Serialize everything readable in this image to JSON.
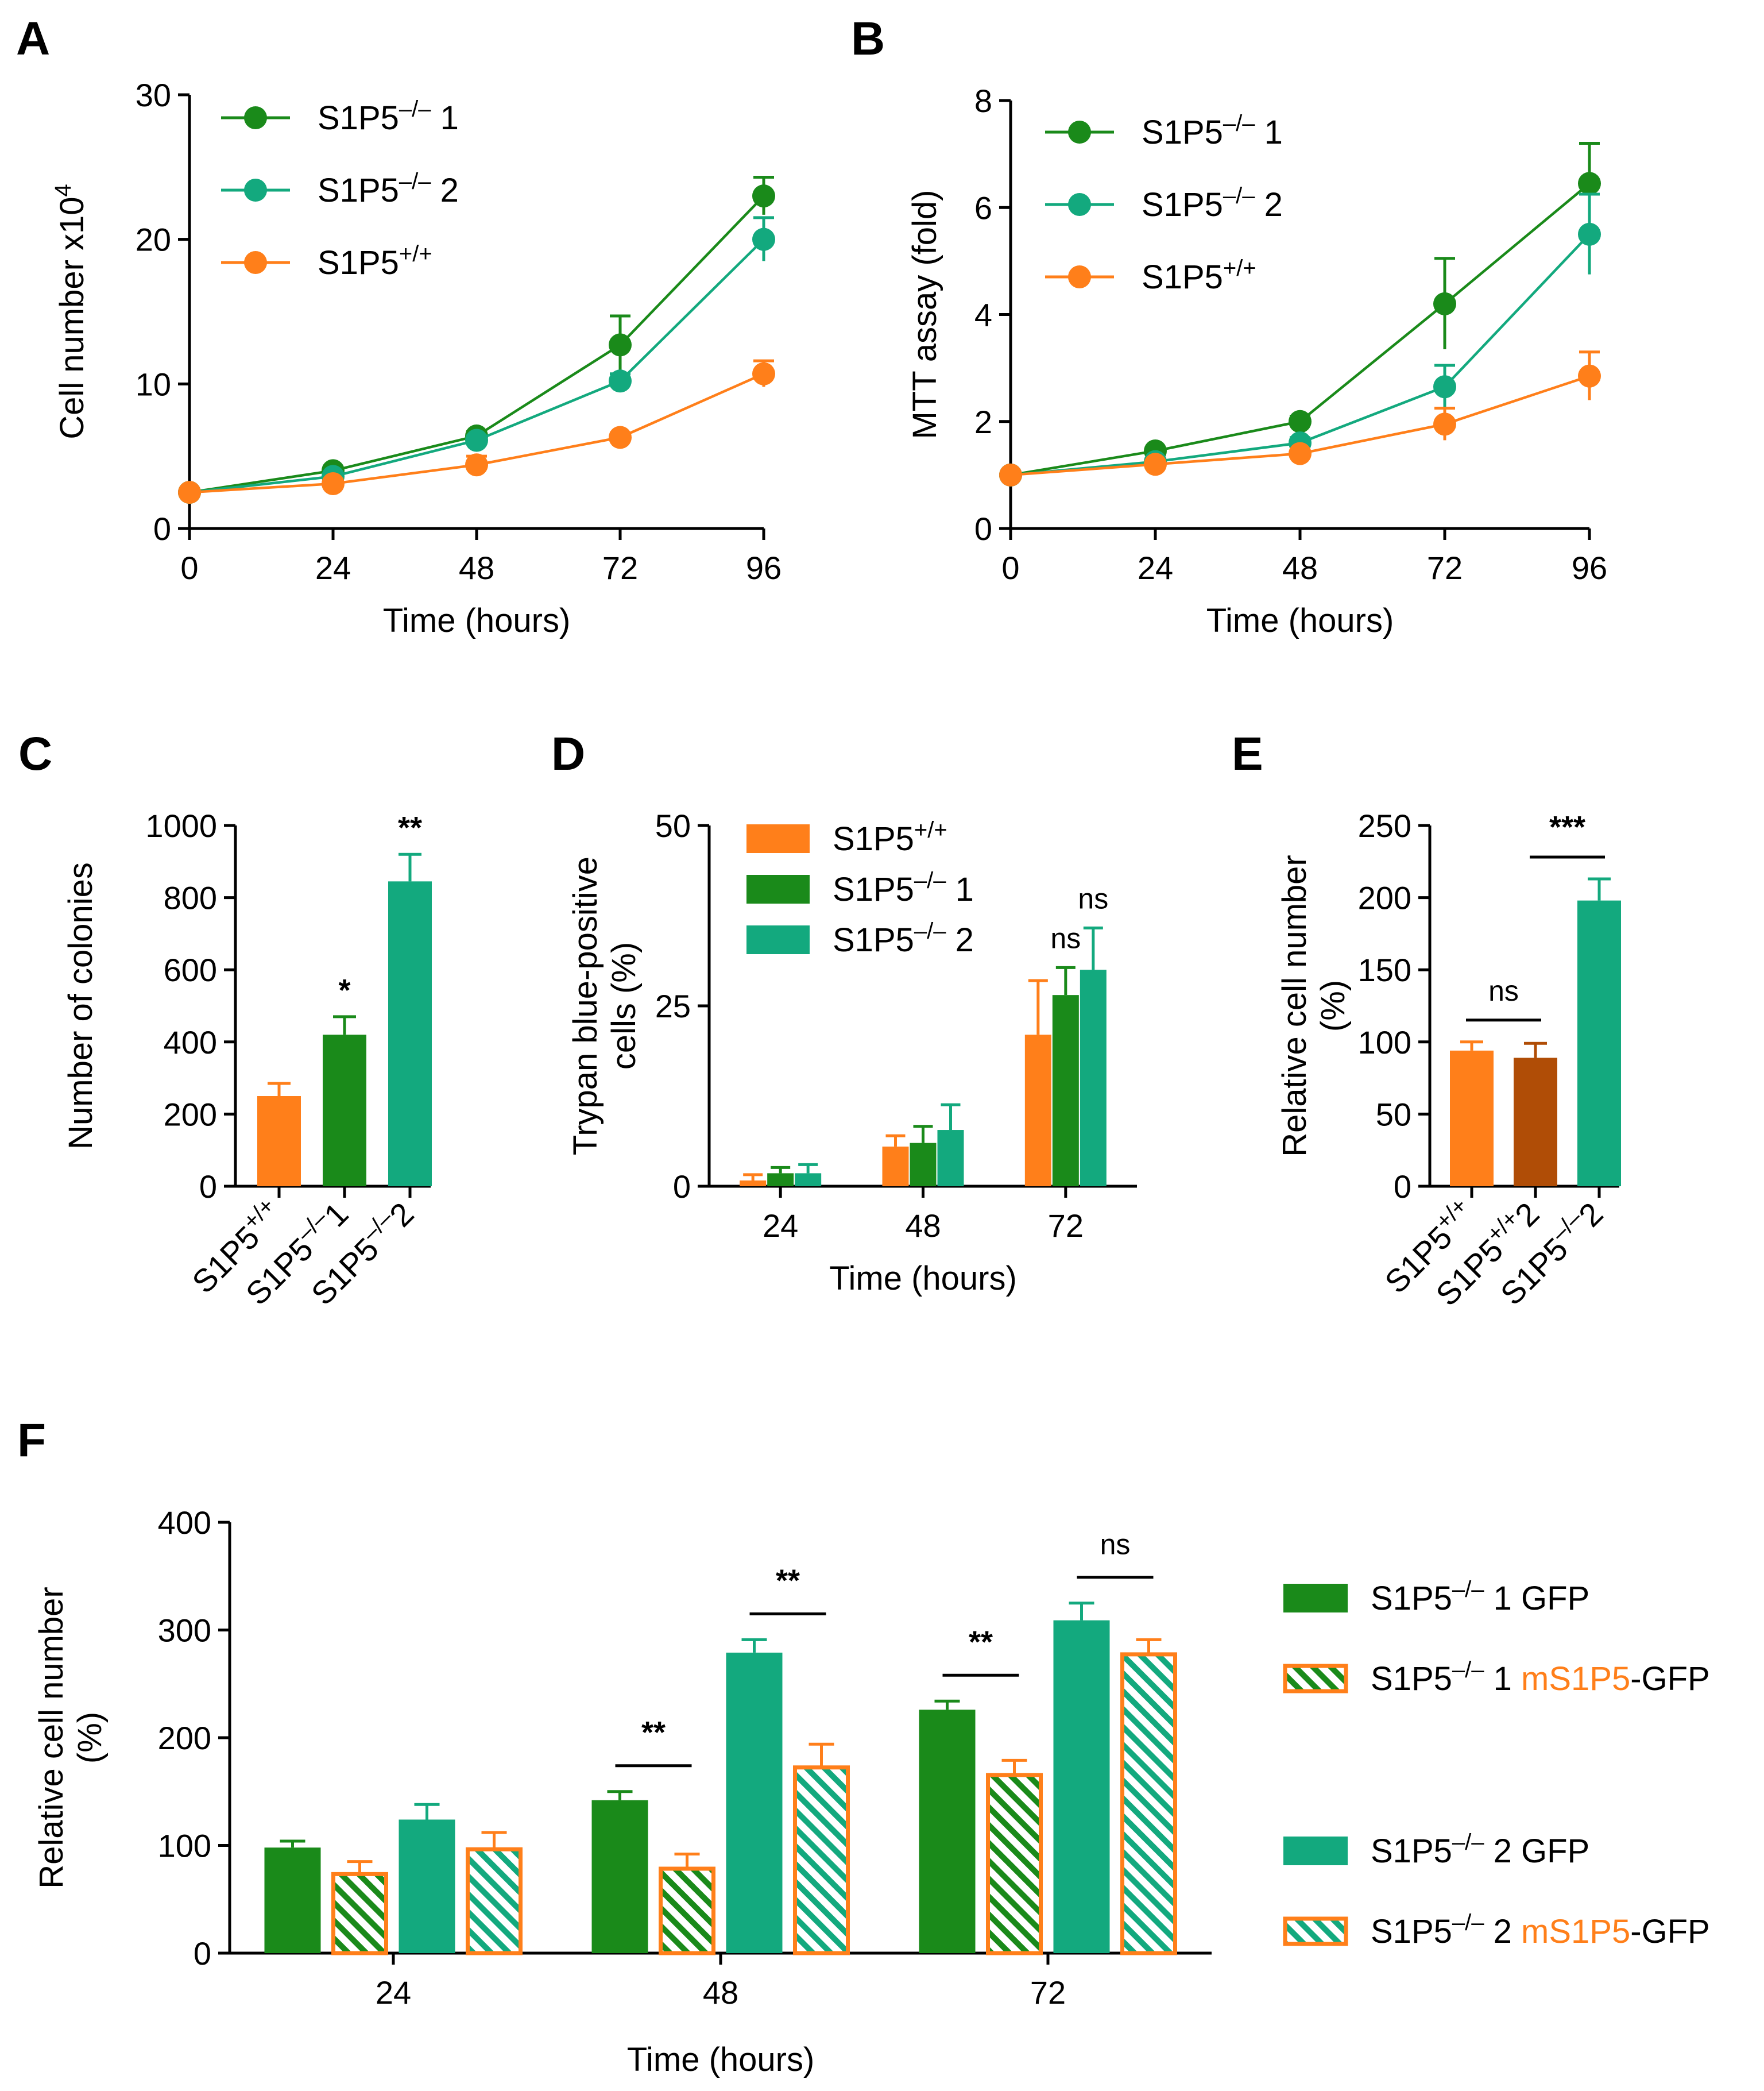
{
  "colors": {
    "dark_green": "#1a8a1a",
    "teal": "#13a97e",
    "orange": "#ff7f1a",
    "brown": "#b04d06",
    "black": "#000000"
  },
  "chart_data": [
    {
      "id": "A",
      "panel_label": "A",
      "type": "line",
      "xlabel": "Time (hours)",
      "ylabel": "Cell number x10",
      "ylabel_sup": "4",
      "x": [
        0,
        24,
        48,
        72,
        96
      ],
      "xticks": [
        "0",
        "24",
        "48",
        "72",
        "96"
      ],
      "xlim": [
        0,
        96
      ],
      "ylim": [
        0,
        30
      ],
      "yticks": [
        "0",
        "10",
        "20",
        "30"
      ],
      "legend_position": "top-left",
      "series": [
        {
          "name": "S1P5",
          "sup": "–/–",
          "suffix": " 1",
          "color": "#1a8a1a",
          "values": [
            2.5,
            4.0,
            6.4,
            12.7,
            23.0
          ],
          "errors": [
            0.2,
            0.3,
            0.3,
            2.0,
            1.3
          ]
        },
        {
          "name": "S1P5",
          "sup": "–/–",
          "suffix": " 2",
          "color": "#13a97e",
          "values": [
            2.5,
            3.6,
            6.1,
            10.2,
            20.0
          ],
          "errors": [
            0.2,
            0.3,
            0.3,
            0.5,
            1.5
          ]
        },
        {
          "name": "S1P5",
          "sup": "+/+",
          "suffix": "",
          "color": "#ff7f1a",
          "values": [
            2.5,
            3.1,
            4.4,
            6.3,
            10.7
          ],
          "errors": [
            0.2,
            0.3,
            0.6,
            0.3,
            0.9
          ]
        }
      ]
    },
    {
      "id": "B",
      "panel_label": "B",
      "type": "line",
      "xlabel": "Time (hours)",
      "ylabel": "MTT assay (fold)",
      "x": [
        0,
        24,
        48,
        72,
        96
      ],
      "xticks": [
        "0",
        "24",
        "48",
        "72",
        "96"
      ],
      "xlim": [
        0,
        96
      ],
      "ylim": [
        0,
        8
      ],
      "yticks": [
        "0",
        "2",
        "4",
        "6",
        "8"
      ],
      "legend_position": "top-left",
      "series": [
        {
          "name": "S1P5",
          "sup": "–/–",
          "suffix": " 1",
          "color": "#1a8a1a",
          "values": [
            1.0,
            1.45,
            2.0,
            4.2,
            6.45
          ],
          "errors": [
            0.05,
            0.05,
            0.1,
            0.85,
            0.75
          ]
        },
        {
          "name": "S1P5",
          "sup": "–/–",
          "suffix": " 2",
          "color": "#13a97e",
          "values": [
            1.0,
            1.25,
            1.6,
            2.65,
            5.5
          ],
          "errors": [
            0.05,
            0.05,
            0.1,
            0.4,
            0.75
          ]
        },
        {
          "name": "S1P5",
          "sup": "+/+",
          "suffix": "",
          "color": "#ff7f1a",
          "values": [
            1.0,
            1.2,
            1.4,
            1.95,
            2.85
          ],
          "errors": [
            0.05,
            0.05,
            0.05,
            0.3,
            0.45
          ]
        }
      ]
    },
    {
      "id": "C",
      "panel_label": "C",
      "type": "bar",
      "ylabel": "Number of colonies",
      "ylim": [
        0,
        1000
      ],
      "yticks": [
        "0",
        "200",
        "400",
        "600",
        "800",
        "1000"
      ],
      "categories": [
        {
          "name": "S1P5",
          "sup": "+/+",
          "suffix": ""
        },
        {
          "name": "S1P5",
          "sup": "–/–",
          "suffix": "1"
        },
        {
          "name": "S1P5",
          "sup": "–/–",
          "suffix": "2"
        }
      ],
      "values": [
        250,
        420,
        845
      ],
      "errors": [
        35,
        50,
        75
      ],
      "colors": [
        "#ff7f1a",
        "#1a8a1a",
        "#13a97e"
      ],
      "significance": [
        "",
        "*",
        "**"
      ]
    },
    {
      "id": "D",
      "panel_label": "D",
      "type": "bar",
      "xlabel": "Time (hours)",
      "ylabel_line1": "Trypan blue-positive",
      "ylabel_line2": "cells (%)",
      "ylim": [
        0,
        50
      ],
      "yticks": [
        "0",
        "25",
        "50"
      ],
      "categories": [
        "24",
        "48",
        "72"
      ],
      "legend_position": "top-left",
      "series": [
        {
          "name": "S1P5",
          "sup": "+/+",
          "suffix": "",
          "color": "#ff7f1a",
          "values": [
            0.8,
            5.5,
            21.0
          ],
          "errors": [
            0.8,
            1.5,
            7.5
          ]
        },
        {
          "name": "S1P5",
          "sup": "–/–",
          "suffix": " 1",
          "color": "#1a8a1a",
          "values": [
            1.8,
            6.0,
            26.5
          ],
          "errors": [
            0.8,
            2.3,
            3.8
          ]
        },
        {
          "name": "S1P5",
          "sup": "–/–",
          "suffix": " 2",
          "color": "#13a97e",
          "values": [
            1.8,
            7.8,
            30.0
          ],
          "errors": [
            1.2,
            3.5,
            5.8
          ]
        }
      ],
      "significance": [
        {
          "group": 2,
          "series": 1,
          "label": "ns"
        },
        {
          "group": 2,
          "series": 2,
          "label": "ns"
        }
      ]
    },
    {
      "id": "E",
      "panel_label": "E",
      "type": "bar",
      "ylabel_line1": "Relative cell number",
      "ylabel_line2": "(%)",
      "ylim": [
        0,
        250
      ],
      "yticks": [
        "0",
        "50",
        "100",
        "150",
        "200",
        "250"
      ],
      "categories": [
        {
          "name": "S1P5",
          "sup": "+/+",
          "suffix": ""
        },
        {
          "name": "S1P5",
          "sup": "+/+",
          "suffix": "2"
        },
        {
          "name": "S1P5",
          "sup": "–/–",
          "suffix": "2"
        }
      ],
      "values": [
        94,
        89,
        198
      ],
      "errors": [
        6,
        10,
        15
      ],
      "colors": [
        "#ff7f1a",
        "#b04d06",
        "#13a97e"
      ],
      "brackets": [
        {
          "from": 0,
          "to": 1,
          "label": "ns"
        },
        {
          "from": 1,
          "to": 2,
          "label": "***"
        }
      ]
    },
    {
      "id": "F",
      "panel_label": "F",
      "type": "bar",
      "xlabel": "Time (hours)",
      "ylabel_line1": "Relative cell number",
      "ylabel_line2": "(%)",
      "ylim": [
        0,
        400
      ],
      "yticks": [
        "0",
        "100",
        "200",
        "300",
        "400"
      ],
      "categories": [
        "24",
        "48",
        "72"
      ],
      "legend_position": "right",
      "series": [
        {
          "name": "S1P5",
          "sup": "–/–",
          "suffix": " 1 GFP",
          "highlight": "",
          "tail": "",
          "fill": "#1a8a1a",
          "pattern": false,
          "values": [
            98,
            142,
            226
          ],
          "errors": [
            6,
            8,
            8
          ]
        },
        {
          "name": "S1P5",
          "sup": "–/–",
          "suffix": " 1 ",
          "highlight": "mS1P5",
          "tail": "-GFP",
          "fill": "#1a8a1a",
          "pattern": true,
          "values": [
            75,
            80,
            167
          ],
          "errors": [
            10,
            12,
            12
          ]
        },
        {
          "name": "S1P5",
          "sup": "–/–",
          "suffix": " 2 GFP",
          "highlight": "",
          "tail": "",
          "fill": "#13a97e",
          "pattern": false,
          "values": [
            124,
            279,
            309
          ],
          "errors": [
            14,
            12,
            16
          ]
        },
        {
          "name": "S1P5",
          "sup": "–/–",
          "suffix": " 2 ",
          "highlight": "mS1P5",
          "tail": "-GFP",
          "fill": "#13a97e",
          "pattern": true,
          "values": [
            98,
            174,
            279
          ],
          "errors": [
            14,
            20,
            12
          ]
        }
      ],
      "brackets": [
        {
          "group": 1,
          "from": 0,
          "to": 1,
          "label": "**"
        },
        {
          "group": 1,
          "from": 2,
          "to": 3,
          "label": "**"
        },
        {
          "group": 2,
          "from": 0,
          "to": 1,
          "label": "**"
        },
        {
          "group": 2,
          "from": 2,
          "to": 3,
          "label": "ns"
        }
      ]
    }
  ]
}
